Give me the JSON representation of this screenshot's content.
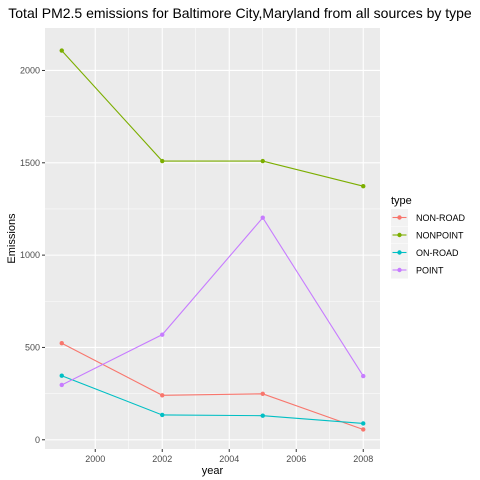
{
  "chart_data": {
    "type": "line",
    "title": "Total PM2.5 emissions for Baltimore City,Maryland from all sources by type",
    "xlabel": "year",
    "ylabel": "Emissions",
    "x": [
      1999,
      2002,
      2005,
      2008
    ],
    "xlim": [
      1998.5,
      2008.5
    ],
    "ylim": [
      -50,
      2230
    ],
    "x_ticks": [
      2000,
      2002,
      2004,
      2006,
      2008
    ],
    "y_ticks": [
      0,
      500,
      1000,
      1500,
      2000
    ],
    "grid": true,
    "background": "#ebebeb",
    "legend": {
      "title": "type",
      "position": "right"
    },
    "series": [
      {
        "name": "NON-ROAD",
        "color": "#f8766d",
        "values": [
          522.9,
          241.0,
          248.9,
          55.8
        ]
      },
      {
        "name": "NONPOINT",
        "color": "#7cae00",
        "values": [
          2107.6,
          1509.5,
          1509.5,
          1373.2
        ]
      },
      {
        "name": "ON-ROAD",
        "color": "#00bfc4",
        "values": [
          346.8,
          134.3,
          130.4,
          88.3
        ]
      },
      {
        "name": "POINT",
        "color": "#c77cff",
        "values": [
          296.8,
          569.3,
          1202.5,
          344.98
        ]
      }
    ]
  }
}
